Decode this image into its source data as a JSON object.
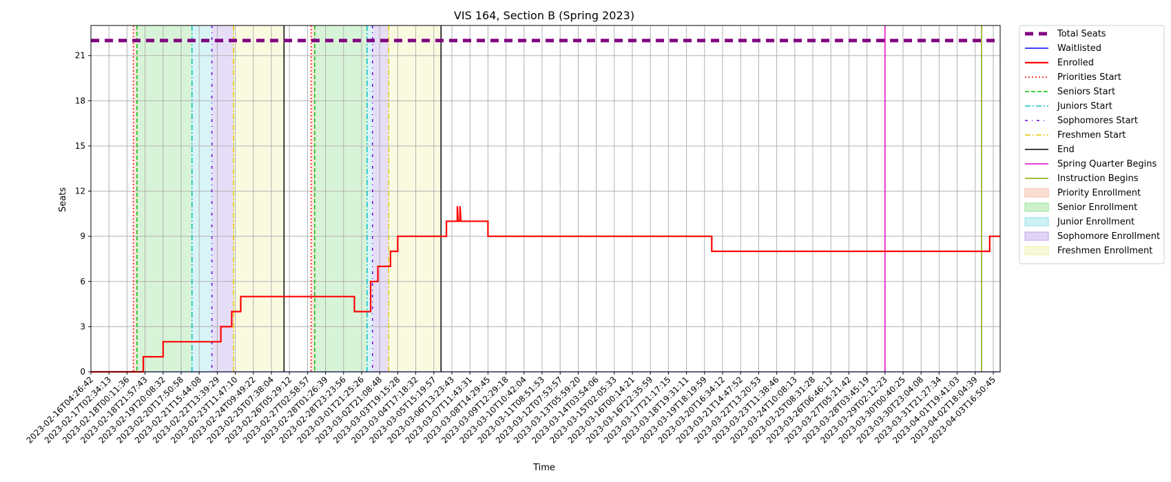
{
  "chart_data": {
    "type": "line",
    "title": "VIS 164, Section B (Spring 2023)",
    "xlabel": "Time",
    "ylabel": "Seats",
    "ylim": [
      0,
      23
    ],
    "yticks": [
      0,
      3,
      6,
      9,
      12,
      15,
      18,
      21
    ],
    "grid": true,
    "legend_position": "outside-right",
    "x_ticks": [
      "2023-02-16T04:26:42",
      "2023-02-17T02:34:13",
      "2023-02-18T00:11:36",
      "2023-02-18T21:57:43",
      "2023-02-19T20:08:32",
      "2023-02-20T17:50:58",
      "2023-02-21T15:44:08",
      "2023-02-22T13:39:29",
      "2023-02-23T11:47:10",
      "2023-02-24T09:49:22",
      "2023-02-25T07:38:04",
      "2023-02-26T05:29:12",
      "2023-02-27T02:58:57",
      "2023-02-28T01:26:39",
      "2023-02-28T23:23:56",
      "2023-03-01T21:25:26",
      "2023-03-02T21:08:48",
      "2023-03-03T19:15:28",
      "2023-03-04T17:18:32",
      "2023-03-05T15:19:57",
      "2023-03-06T13:23:43",
      "2023-03-07T11:43:31",
      "2023-03-08T14:29:45",
      "2023-03-09T12:29:18",
      "2023-03-10T10:42:04",
      "2023-03-11T08:51:53",
      "2023-03-12T07:53:57",
      "2023-03-13T05:59:20",
      "2023-03-14T03:54:06",
      "2023-03-15T02:05:33",
      "2023-03-16T00:14:21",
      "2023-03-16T22:35:59",
      "2023-03-17T21:17:15",
      "2023-03-18T19:31:11",
      "2023-03-19T18:19:59",
      "2023-03-20T16:34:12",
      "2023-03-21T14:47:52",
      "2023-03-22T13:20:53",
      "2023-03-23T11:38:46",
      "2023-03-24T10:08:13",
      "2023-03-25T08:31:28",
      "2023-03-26T06:46:12",
      "2023-03-27T05:21:42",
      "2023-03-28T03:45:19",
      "2023-03-29T02:12:23",
      "2023-03-30T00:40:25",
      "2023-03-30T23:04:08",
      "2023-03-31T21:27:34",
      "2023-04-01T19:41:03",
      "2023-04-02T18:04:39",
      "2023-04-03T16:50:45"
    ],
    "series": [
      {
        "name": "Total Seats",
        "style": "dashed-thick",
        "color": "#800080",
        "points": [
          [
            0,
            22
          ],
          [
            50.4,
            22
          ]
        ]
      },
      {
        "name": "Waitlisted",
        "style": "solid",
        "color": "#0000ff",
        "points": [
          [
            0,
            0
          ],
          [
            50.4,
            0
          ]
        ]
      },
      {
        "name": "Enrolled",
        "style": "solid-thick",
        "color": "#ff0000",
        "points": [
          [
            0,
            0
          ],
          [
            2.9,
            0
          ],
          [
            2.9,
            1
          ],
          [
            4.0,
            1
          ],
          [
            4.0,
            2
          ],
          [
            7.2,
            2
          ],
          [
            7.2,
            3
          ],
          [
            7.8,
            3
          ],
          [
            7.8,
            4
          ],
          [
            8.3,
            4
          ],
          [
            8.3,
            5
          ],
          [
            14.6,
            5
          ],
          [
            14.6,
            4
          ],
          [
            15.5,
            4
          ],
          [
            15.5,
            6
          ],
          [
            15.9,
            6
          ],
          [
            15.9,
            7
          ],
          [
            16.6,
            7
          ],
          [
            16.6,
            8
          ],
          [
            17.0,
            8
          ],
          [
            17.0,
            9
          ],
          [
            19.7,
            9
          ],
          [
            19.7,
            10
          ],
          [
            20.3,
            10
          ],
          [
            20.3,
            11
          ],
          [
            20.35,
            10
          ],
          [
            20.45,
            10
          ],
          [
            20.45,
            11
          ],
          [
            20.5,
            10
          ],
          [
            22.0,
            10
          ],
          [
            22.0,
            9
          ],
          [
            34.4,
            9
          ],
          [
            34.4,
            8
          ],
          [
            49.8,
            8
          ],
          [
            49.8,
            9
          ],
          [
            50.4,
            9
          ]
        ]
      }
    ],
    "vertical_markers": [
      {
        "name": "Priorities Start",
        "color": "#ff0000",
        "style": "dotted",
        "x": [
          2.35,
          12.2
        ]
      },
      {
        "name": "Seniors Start",
        "color": "#00c000",
        "style": "dashed",
        "x": [
          2.55,
          12.4
        ]
      },
      {
        "name": "Juniors Start",
        "color": "#00bfbf",
        "style": "dashdot",
        "x": [
          5.6,
          15.3
        ]
      },
      {
        "name": "Sophomores Start",
        "color": "#6a00d8",
        "style": "dashdot2",
        "x": [
          6.7,
          15.6
        ]
      },
      {
        "name": "Freshmen Start",
        "color": "#e6c800",
        "style": "dashdot",
        "x": [
          7.9,
          16.5
        ]
      },
      {
        "name": "End",
        "color": "#000000",
        "style": "solid",
        "x": [
          10.7,
          19.4
        ]
      },
      {
        "name": "Spring Quarter Begins",
        "color": "#e000c0",
        "style": "solid",
        "x": [
          44.0
        ]
      },
      {
        "name": "Instruction Begins",
        "color": "#7fa800",
        "style": "solid",
        "x": [
          49.35
        ]
      }
    ],
    "shaded_regions": [
      {
        "name": "Priority Enrollment",
        "color": "#f4b8a0",
        "ranges": [
          [
            2.35,
            2.55
          ],
          [
            12.2,
            12.4
          ]
        ]
      },
      {
        "name": "Senior Enrollment",
        "color": "#90e090",
        "ranges": [
          [
            2.55,
            5.6
          ],
          [
            12.4,
            15.3
          ]
        ]
      },
      {
        "name": "Junior Enrollment",
        "color": "#90e0e8",
        "ranges": [
          [
            5.6,
            6.7
          ],
          [
            15.3,
            15.6
          ]
        ]
      },
      {
        "name": "Sophomore Enrollment",
        "color": "#b8a0e8",
        "ranges": [
          [
            6.7,
            7.9
          ],
          [
            15.6,
            16.5
          ]
        ]
      },
      {
        "name": "Freshmen Enrollment",
        "color": "#f0f0a8",
        "ranges": [
          [
            7.9,
            10.7
          ],
          [
            16.5,
            19.4
          ]
        ]
      }
    ]
  }
}
